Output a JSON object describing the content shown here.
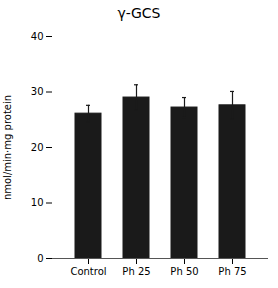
{
  "chart_data": {
    "type": "bar",
    "title": "γ-GCS",
    "ylabel": "nmol/min·mg protein",
    "categories": [
      "Control",
      "Ph 25",
      "Ph 50",
      "Ph 75"
    ],
    "values": [
      26.1,
      29.0,
      27.2,
      27.6
    ],
    "errors": [
      1.5,
      2.3,
      1.8,
      2.5
    ],
    "color": "#1a1a1a",
    "ylim": [
      0,
      40
    ],
    "yticks": [
      0,
      10,
      20,
      30,
      40
    ],
    "grid": false
  }
}
